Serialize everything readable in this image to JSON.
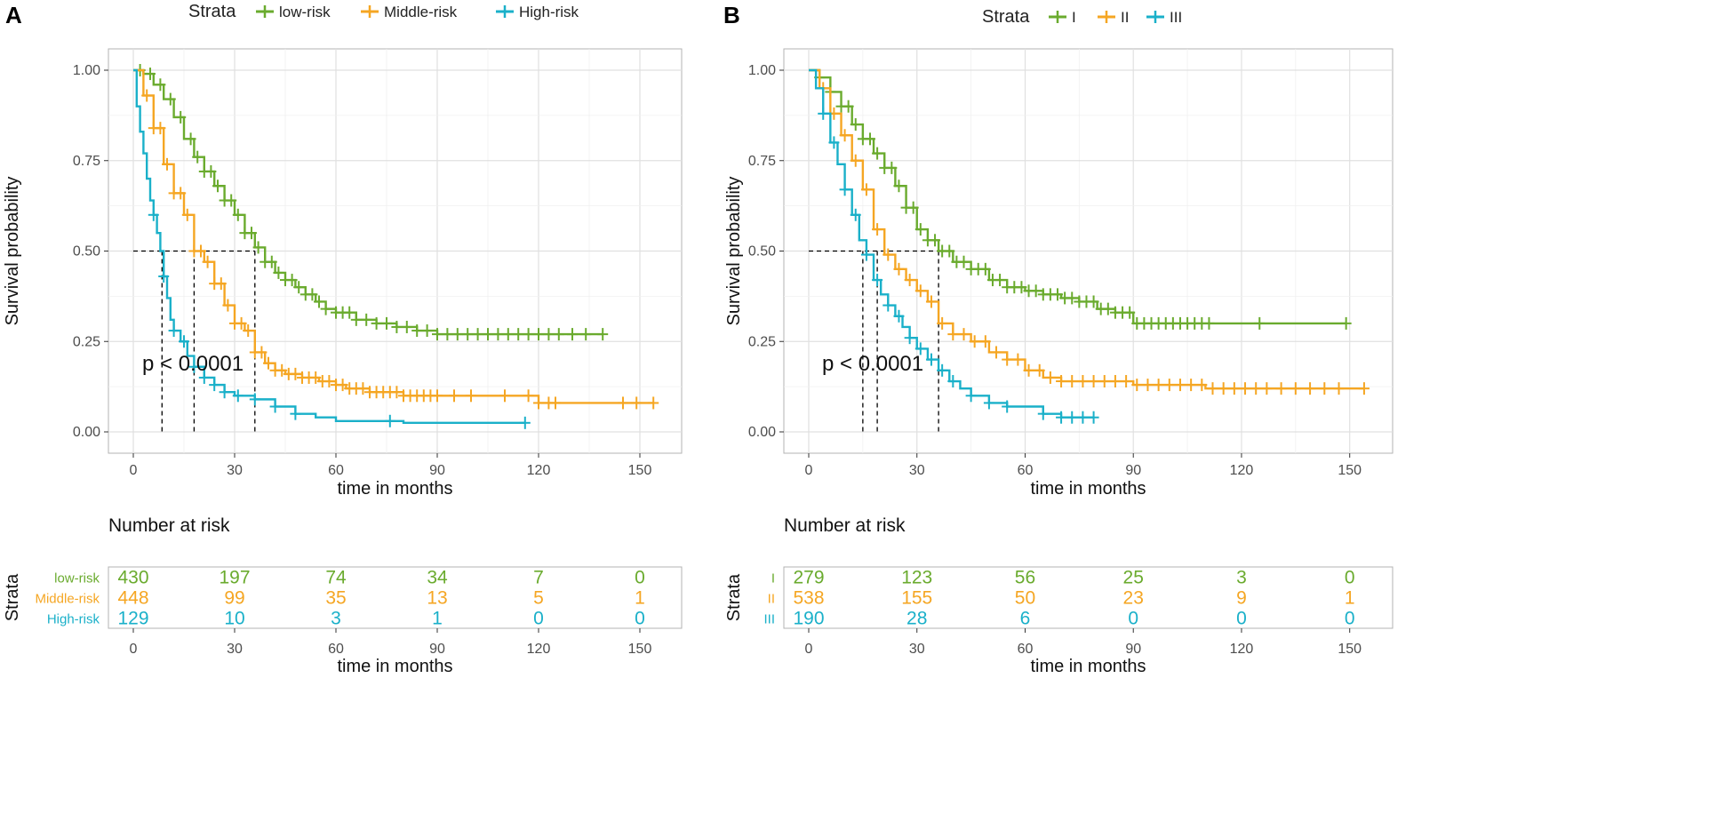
{
  "chart_data": [
    {
      "panel": "A",
      "type": "line",
      "subtype": "kaplan-meier",
      "legend_title": "Strata",
      "xlabel": "time in months",
      "ylabel": "Survival probability",
      "xlim": [
        0,
        155
      ],
      "ylim": [
        0,
        1
      ],
      "x_ticks": [
        "0",
        "30",
        "60",
        "90",
        "120",
        "150"
      ],
      "y_ticks": [
        "0.00",
        "0.25",
        "0.50",
        "0.75",
        "1.00"
      ],
      "pvalue": "p < 0.0001",
      "median_survival": [
        8.5,
        18,
        36
      ],
      "series": [
        {
          "name": "low-risk",
          "color": "#6aab2e",
          "points": [
            [
              0,
              1
            ],
            [
              3,
              0.99
            ],
            [
              6,
              0.96
            ],
            [
              9,
              0.92
            ],
            [
              12,
              0.87
            ],
            [
              15,
              0.81
            ],
            [
              18,
              0.76
            ],
            [
              21,
              0.72
            ],
            [
              24,
              0.68
            ],
            [
              27,
              0.64
            ],
            [
              30,
              0.6
            ],
            [
              33,
              0.55
            ],
            [
              36,
              0.51
            ],
            [
              39,
              0.47
            ],
            [
              42,
              0.44
            ],
            [
              45,
              0.42
            ],
            [
              48,
              0.4
            ],
            [
              51,
              0.38
            ],
            [
              54,
              0.36
            ],
            [
              57,
              0.34
            ],
            [
              60,
              0.33
            ],
            [
              66,
              0.31
            ],
            [
              72,
              0.3
            ],
            [
              78,
              0.29
            ],
            [
              84,
              0.28
            ],
            [
              90,
              0.27
            ],
            [
              100,
              0.27
            ],
            [
              110,
              0.27
            ],
            [
              120,
              0.27
            ],
            [
              130,
              0.27
            ],
            [
              139,
              0.27
            ]
          ],
          "censor_x": [
            2,
            5,
            8,
            11,
            14,
            17,
            19,
            21,
            23,
            25,
            27,
            29,
            31,
            33,
            35,
            37,
            39,
            41,
            43,
            45,
            47,
            49,
            51,
            53,
            55,
            57,
            60,
            62,
            64,
            66,
            69,
            72,
            75,
            78,
            81,
            84,
            87,
            90,
            93,
            96,
            99,
            102,
            105,
            108,
            111,
            114,
            117,
            120,
            123,
            126,
            130,
            134,
            139
          ]
        },
        {
          "name": "Middle-risk",
          "color": "#f5a623",
          "points": [
            [
              0,
              1
            ],
            [
              3,
              0.93
            ],
            [
              6,
              0.84
            ],
            [
              9,
              0.74
            ],
            [
              12,
              0.66
            ],
            [
              15,
              0.6
            ],
            [
              18,
              0.5
            ],
            [
              21,
              0.47
            ],
            [
              24,
              0.41
            ],
            [
              27,
              0.35
            ],
            [
              30,
              0.3
            ],
            [
              33,
              0.28
            ],
            [
              36,
              0.22
            ],
            [
              39,
              0.19
            ],
            [
              42,
              0.17
            ],
            [
              45,
              0.16
            ],
            [
              50,
              0.15
            ],
            [
              55,
              0.14
            ],
            [
              60,
              0.13
            ],
            [
              63,
              0.12
            ],
            [
              70,
              0.11
            ],
            [
              80,
              0.1
            ],
            [
              90,
              0.1
            ],
            [
              100,
              0.1
            ],
            [
              110,
              0.1
            ],
            [
              120,
              0.08
            ],
            [
              130,
              0.08
            ],
            [
              140,
              0.08
            ],
            [
              150,
              0.08
            ],
            [
              154,
              0.08
            ]
          ],
          "censor_x": [
            4,
            6,
            8,
            10,
            12,
            14,
            16,
            18,
            20,
            22,
            24,
            26,
            28,
            30,
            32,
            34,
            36,
            38,
            40,
            42,
            44,
            46,
            48,
            50,
            52,
            54,
            56,
            58,
            60,
            62,
            64,
            66,
            68,
            70,
            72,
            74,
            76,
            78,
            80,
            82,
            84,
            86,
            88,
            90,
            95,
            100,
            110,
            117,
            120,
            123,
            125,
            145,
            149,
            154
          ]
        },
        {
          "name": "High-risk",
          "color": "#1ab0c9",
          "points": [
            [
              0,
              1
            ],
            [
              1,
              0.9
            ],
            [
              2,
              0.83
            ],
            [
              3,
              0.77
            ],
            [
              4,
              0.7
            ],
            [
              5,
              0.64
            ],
            [
              6,
              0.6
            ],
            [
              7,
              0.55
            ],
            [
              8,
              0.5
            ],
            [
              9,
              0.43
            ],
            [
              10,
              0.37
            ],
            [
              11,
              0.31
            ],
            [
              12,
              0.28
            ],
            [
              14,
              0.25
            ],
            [
              16,
              0.21
            ],
            [
              18,
              0.18
            ],
            [
              21,
              0.15
            ],
            [
              24,
              0.13
            ],
            [
              27,
              0.11
            ],
            [
              30,
              0.1
            ],
            [
              36,
              0.09
            ],
            [
              42,
              0.07
            ],
            [
              48,
              0.05
            ],
            [
              54,
              0.04
            ],
            [
              60,
              0.03
            ],
            [
              70,
              0.03
            ],
            [
              80,
              0.025
            ],
            [
              90,
              0.025
            ],
            [
              100,
              0.025
            ],
            [
              110,
              0.025
            ],
            [
              116,
              0.025
            ]
          ],
          "censor_x": [
            6,
            9,
            12,
            15,
            18,
            21,
            24,
            27,
            31,
            36,
            42,
            48,
            76,
            116
          ]
        }
      ],
      "risk_table": {
        "title": "Number at risk",
        "ylabel": "Strata",
        "xlabel": "time in months",
        "times": [
          "0",
          "30",
          "60",
          "90",
          "120",
          "150"
        ],
        "rows": [
          {
            "label": "low-risk",
            "color": "#6aab2e",
            "values": [
              "430",
              "197",
              "74",
              "34",
              "7",
              "0"
            ]
          },
          {
            "label": "Middle-risk",
            "color": "#f5a623",
            "values": [
              "448",
              "99",
              "35",
              "13",
              "5",
              "1"
            ]
          },
          {
            "label": "High-risk",
            "color": "#1ab0c9",
            "values": [
              "129",
              "10",
              "3",
              "1",
              "0",
              "0"
            ]
          }
        ]
      }
    },
    {
      "panel": "B",
      "type": "line",
      "subtype": "kaplan-meier",
      "legend_title": "Strata",
      "xlabel": "time in months",
      "ylabel": "Survival probability",
      "xlim": [
        0,
        155
      ],
      "ylim": [
        0,
        1
      ],
      "x_ticks": [
        "0",
        "30",
        "60",
        "90",
        "120",
        "150"
      ],
      "y_ticks": [
        "0.00",
        "0.25",
        "0.50",
        "0.75",
        "1.00"
      ],
      "pvalue": "p < 0.0001",
      "median_survival": [
        15,
        19,
        36
      ],
      "series": [
        {
          "name": "I",
          "color": "#6aab2e",
          "points": [
            [
              0,
              1
            ],
            [
              3,
              0.98
            ],
            [
              6,
              0.94
            ],
            [
              9,
              0.9
            ],
            [
              12,
              0.85
            ],
            [
              15,
              0.81
            ],
            [
              18,
              0.77
            ],
            [
              21,
              0.73
            ],
            [
              24,
              0.68
            ],
            [
              27,
              0.62
            ],
            [
              30,
              0.56
            ],
            [
              33,
              0.53
            ],
            [
              36,
              0.5
            ],
            [
              40,
              0.47
            ],
            [
              45,
              0.45
            ],
            [
              50,
              0.42
            ],
            [
              55,
              0.4
            ],
            [
              60,
              0.39
            ],
            [
              65,
              0.38
            ],
            [
              70,
              0.37
            ],
            [
              75,
              0.36
            ],
            [
              80,
              0.34
            ],
            [
              85,
              0.33
            ],
            [
              90,
              0.3
            ],
            [
              100,
              0.3
            ],
            [
              110,
              0.3
            ],
            [
              120,
              0.3
            ],
            [
              130,
              0.3
            ],
            [
              140,
              0.3
            ],
            [
              149,
              0.3
            ]
          ],
          "censor_x": [
            3,
            6,
            9,
            11,
            13,
            15,
            17,
            19,
            21,
            23,
            25,
            27,
            29,
            31,
            33,
            35,
            37,
            39,
            41,
            43,
            45,
            47,
            49,
            51,
            53,
            55,
            57,
            59,
            61,
            63,
            65,
            67,
            69,
            71,
            73,
            75,
            77,
            79,
            81,
            83,
            85,
            87,
            89,
            91,
            93,
            95,
            97,
            99,
            101,
            103,
            105,
            107,
            109,
            111,
            125,
            149
          ]
        },
        {
          "name": "II",
          "color": "#f5a623",
          "points": [
            [
              0,
              1
            ],
            [
              3,
              0.95
            ],
            [
              6,
              0.88
            ],
            [
              9,
              0.82
            ],
            [
              12,
              0.75
            ],
            [
              15,
              0.67
            ],
            [
              18,
              0.56
            ],
            [
              21,
              0.49
            ],
            [
              24,
              0.45
            ],
            [
              27,
              0.42
            ],
            [
              30,
              0.39
            ],
            [
              33,
              0.36
            ],
            [
              36,
              0.3
            ],
            [
              40,
              0.27
            ],
            [
              45,
              0.25
            ],
            [
              50,
              0.22
            ],
            [
              55,
              0.2
            ],
            [
              60,
              0.17
            ],
            [
              65,
              0.15
            ],
            [
              70,
              0.14
            ],
            [
              80,
              0.14
            ],
            [
              90,
              0.13
            ],
            [
              100,
              0.13
            ],
            [
              110,
              0.12
            ],
            [
              120,
              0.12
            ],
            [
              130,
              0.12
            ],
            [
              140,
              0.12
            ],
            [
              150,
              0.12
            ],
            [
              154,
              0.12
            ]
          ],
          "censor_x": [
            4,
            7,
            10,
            13,
            16,
            19,
            22,
            25,
            28,
            31,
            34,
            37,
            40,
            43,
            46,
            49,
            52,
            55,
            58,
            61,
            64,
            67,
            70,
            73,
            76,
            79,
            82,
            85,
            88,
            91,
            94,
            97,
            100,
            103,
            106,
            109,
            112,
            115,
            118,
            121,
            124,
            127,
            131,
            135,
            139,
            143,
            147,
            154
          ]
        },
        {
          "name": "III",
          "color": "#1ab0c9",
          "points": [
            [
              0,
              1
            ],
            [
              2,
              0.95
            ],
            [
              4,
              0.88
            ],
            [
              6,
              0.8
            ],
            [
              8,
              0.74
            ],
            [
              10,
              0.67
            ],
            [
              12,
              0.6
            ],
            [
              14,
              0.53
            ],
            [
              16,
              0.49
            ],
            [
              18,
              0.42
            ],
            [
              20,
              0.38
            ],
            [
              22,
              0.35
            ],
            [
              24,
              0.32
            ],
            [
              26,
              0.29
            ],
            [
              28,
              0.26
            ],
            [
              30,
              0.23
            ],
            [
              33,
              0.2
            ],
            [
              36,
              0.17
            ],
            [
              39,
              0.14
            ],
            [
              42,
              0.12
            ],
            [
              45,
              0.1
            ],
            [
              50,
              0.08
            ],
            [
              55,
              0.07
            ],
            [
              60,
              0.07
            ],
            [
              65,
              0.05
            ],
            [
              70,
              0.04
            ],
            [
              75,
              0.04
            ],
            [
              79,
              0.04
            ]
          ],
          "censor_x": [
            4,
            7,
            10,
            13,
            16,
            19,
            22,
            25,
            28,
            31,
            34,
            37,
            40,
            45,
            50,
            55,
            65,
            70,
            73,
            76,
            79
          ]
        }
      ],
      "risk_table": {
        "title": "Number at risk",
        "ylabel": "Strata",
        "xlabel": "time in months",
        "times": [
          "0",
          "30",
          "60",
          "90",
          "120",
          "150"
        ],
        "rows": [
          {
            "label": "I",
            "color": "#6aab2e",
            "values": [
              "279",
              "123",
              "56",
              "25",
              "3",
              "0"
            ]
          },
          {
            "label": "II",
            "color": "#f5a623",
            "values": [
              "538",
              "155",
              "50",
              "23",
              "9",
              "1"
            ]
          },
          {
            "label": "III",
            "color": "#1ab0c9",
            "values": [
              "190",
              "28",
              "6",
              "0",
              "0",
              "0"
            ]
          }
        ]
      }
    }
  ]
}
